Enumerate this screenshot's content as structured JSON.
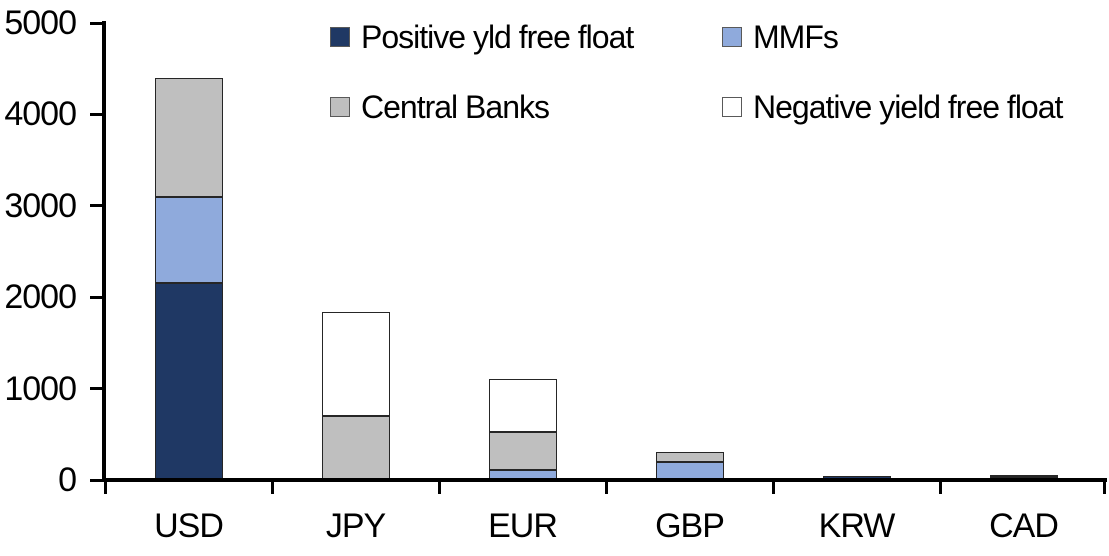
{
  "chart_style": {
    "background": "#FFFFFF",
    "axis_color": "#000000",
    "bar_border_color": "#262626",
    "text_color": "#000000"
  },
  "chart_data": {
    "type": "bar",
    "stacked": true,
    "title": "",
    "xlabel": "",
    "ylabel": "",
    "categories": [
      "USD",
      "JPY",
      "EUR",
      "GBP",
      "KRW",
      "CAD"
    ],
    "series": [
      {
        "name": "Positive yld free float",
        "color": "#1F3864",
        "values": [
          2150,
          0,
          0,
          0,
          40,
          35
        ]
      },
      {
        "name": "MMFs",
        "color": "#8FAADC",
        "values": [
          950,
          0,
          110,
          200,
          0,
          0
        ]
      },
      {
        "name": "Central Banks",
        "color": "#BFBFBF",
        "values": [
          1300,
          700,
          420,
          110,
          0,
          25
        ]
      },
      {
        "name": "Negative yield free float",
        "color": "#FFFFFF",
        "values": [
          0,
          1140,
          570,
          0,
          0,
          0
        ]
      }
    ],
    "ylim": [
      0,
      5000
    ],
    "yticks": [
      0,
      1000,
      2000,
      3000,
      4000,
      5000
    ],
    "grid": false,
    "legend_position": "top"
  }
}
